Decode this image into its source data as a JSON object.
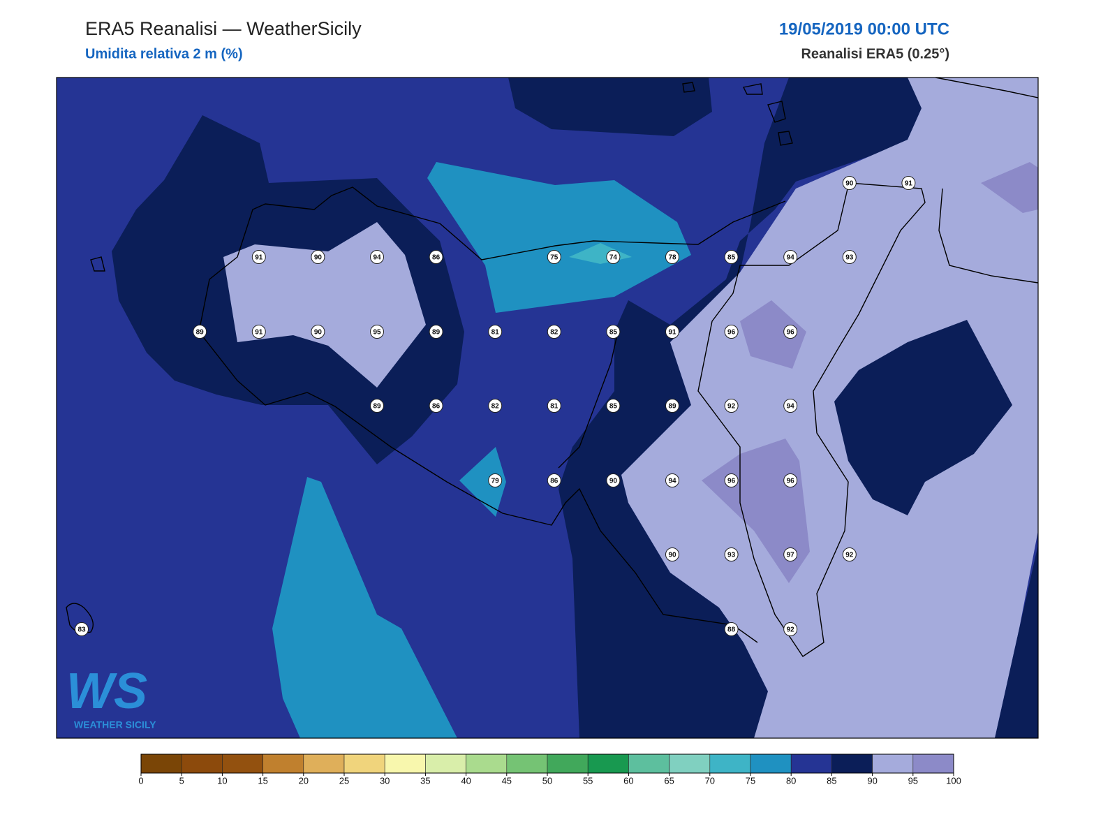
{
  "header": {
    "title": "ERA5 Reanalisi — WeatherSicily",
    "subtitle": "Umidita relativa 2 m (%)",
    "date": "19/05/2019 00:00 UTC",
    "source": "Reanalisi ERA5 (0.25°)"
  },
  "map": {
    "stations": [
      [
        90,
        91
      ],
      [
        91,
        90,
        94,
        86,
        75,
        74,
        78,
        85,
        94,
        93
      ],
      [
        89,
        91,
        90,
        95,
        89,
        81,
        82,
        85,
        91,
        96,
        96
      ],
      [
        89,
        86,
        82,
        81,
        85,
        89,
        92,
        94
      ],
      [
        79,
        86,
        90,
        94,
        96,
        96
      ],
      [
        90,
        93,
        97,
        92
      ],
      [
        83,
        88,
        92
      ]
    ]
  },
  "logo": {
    "mark": "WS",
    "caption": "WEATHER SICILY"
  },
  "colorbar": {
    "ticks": [
      0,
      5,
      10,
      15,
      20,
      25,
      30,
      35,
      40,
      45,
      50,
      55,
      60,
      65,
      70,
      75,
      80,
      85,
      90,
      95,
      100
    ],
    "colors": [
      "#7a4506",
      "#8c4a0c",
      "#93510f",
      "#c0802e",
      "#dfaf5a",
      "#f0d47c",
      "#f8f7ad",
      "#d9eeaa",
      "#aadb8e",
      "#75c374",
      "#41a85b",
      "#189950",
      "#5dbf9e",
      "#80d0c0",
      "#3eb4c6",
      "#1f91c1",
      "#253494",
      "#0b1e58",
      "#a5abdc",
      "#8c8ac8"
    ]
  }
}
